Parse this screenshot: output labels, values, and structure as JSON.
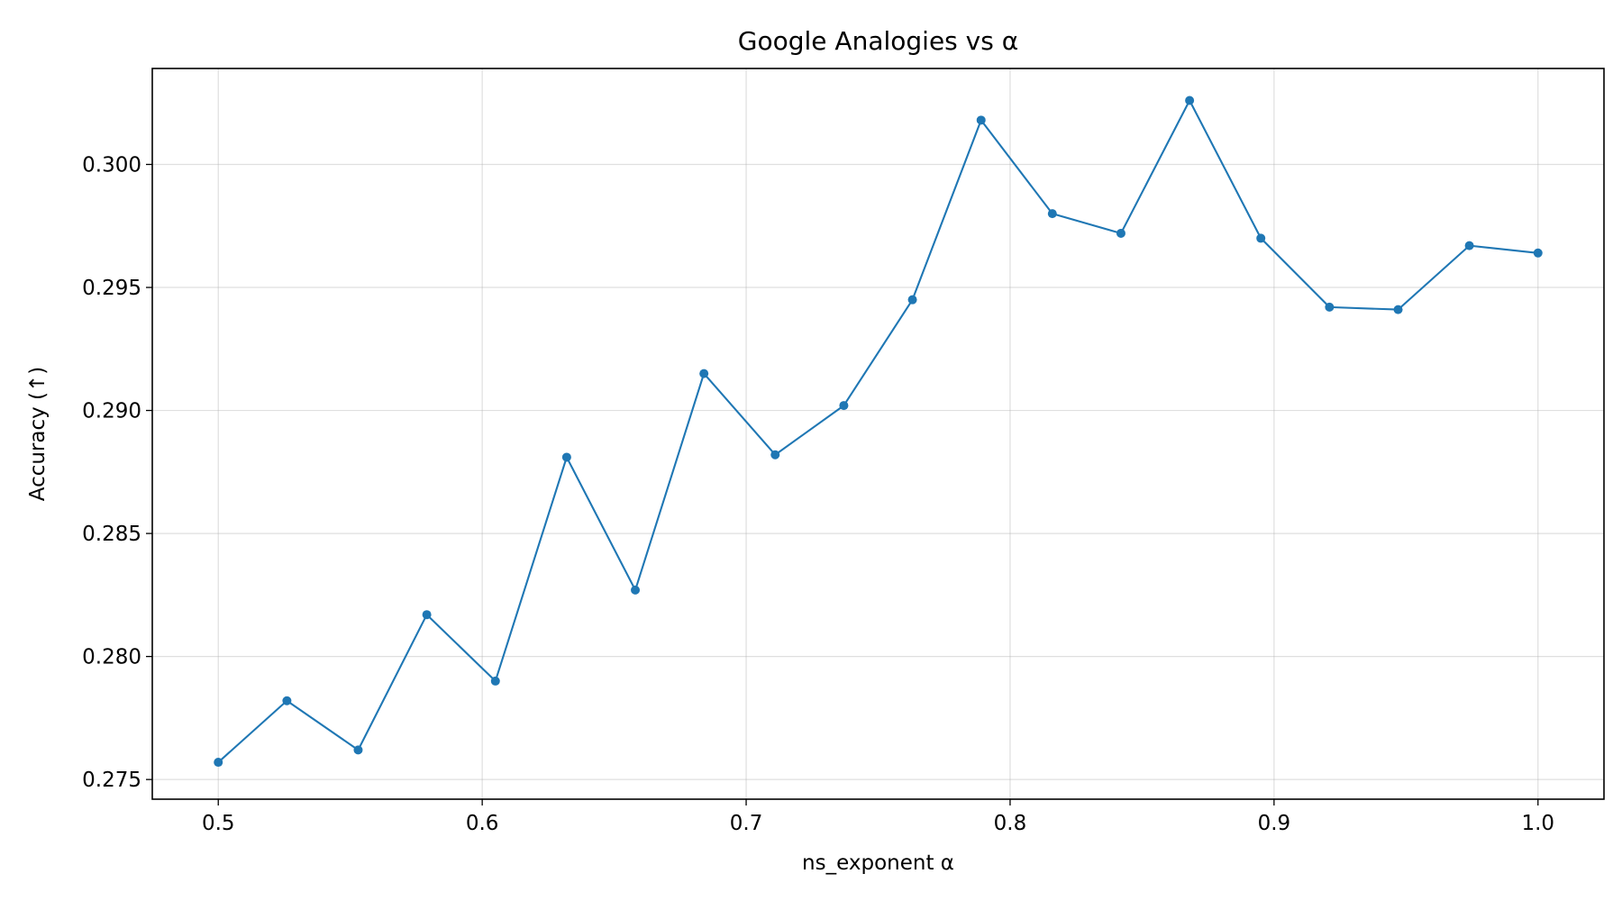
{
  "chart_data": {
    "type": "line",
    "title": "Google Analogies vs α",
    "xlabel": "ns_exponent α",
    "ylabel": "Accuracy (↑)",
    "xlim": [
      0.475,
      1.025
    ],
    "ylim": [
      0.2742,
      0.3039
    ],
    "xticks": [
      0.5,
      0.6,
      0.7,
      0.8,
      0.9,
      1.0
    ],
    "xtick_labels": [
      "0.5",
      "0.6",
      "0.7",
      "0.8",
      "0.9",
      "1.0"
    ],
    "yticks": [
      0.275,
      0.28,
      0.285,
      0.29,
      0.295,
      0.3
    ],
    "ytick_labels": [
      "0.275",
      "0.280",
      "0.285",
      "0.290",
      "0.295",
      "0.300"
    ],
    "grid": true,
    "legend": "none",
    "series": [
      {
        "color": "#1f77b4",
        "marker": "circle",
        "x": [
          0.5,
          0.526,
          0.553,
          0.579,
          0.605,
          0.632,
          0.658,
          0.684,
          0.711,
          0.737,
          0.763,
          0.789,
          0.816,
          0.842,
          0.868,
          0.895,
          0.921,
          0.947,
          0.974,
          1.0
        ],
        "y": [
          0.2757,
          0.2782,
          0.2762,
          0.2817,
          0.279,
          0.2881,
          0.2827,
          0.2915,
          0.2882,
          0.2902,
          0.2945,
          0.3018,
          0.298,
          0.2972,
          0.3026,
          0.297,
          0.2942,
          0.2941,
          0.2967,
          0.2964
        ]
      }
    ]
  }
}
